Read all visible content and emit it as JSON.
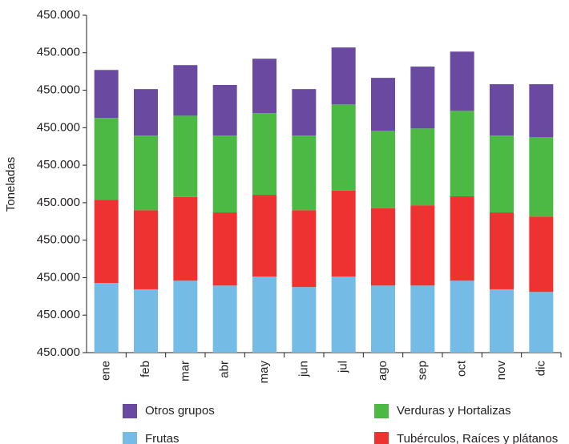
{
  "chart_data": {
    "type": "stacked_bar",
    "y_label": "Toneladas",
    "categories": [
      "ene",
      "feb",
      "mar",
      "abr",
      "may",
      "jun",
      "jul",
      "ago",
      "sep",
      "oct",
      "nov",
      "dic"
    ],
    "series": [
      {
        "name": "Frutas",
        "color": "#74bbe6",
        "values": [
          1.86,
          1.69,
          1.92,
          1.79,
          2.03,
          1.75,
          2.03,
          1.79,
          1.79,
          1.92,
          1.69,
          1.62
        ]
      },
      {
        "name": "Tubérculos, Raíces y plátanos",
        "color": "#ee3131",
        "values": [
          2.22,
          2.11,
          2.23,
          1.95,
          2.18,
          2.05,
          2.29,
          2.06,
          2.14,
          2.25,
          2.05,
          2.01
        ]
      },
      {
        "name": "Verduras y Hortalizas",
        "color": "#4cb944",
        "values": [
          2.18,
          1.99,
          2.17,
          2.05,
          2.18,
          1.99,
          2.3,
          2.07,
          2.05,
          2.28,
          2.05,
          2.12
        ]
      },
      {
        "name": "Otros grupos",
        "color": "#6a4aa0",
        "values": [
          1.28,
          1.24,
          1.35,
          1.35,
          1.45,
          1.24,
          1.52,
          1.41,
          1.65,
          1.58,
          1.37,
          1.41
        ]
      }
    ],
    "ylim": [
      0,
      9
    ],
    "yticks": [
      {
        "value": 0,
        "label": "450.000"
      },
      {
        "value": 1,
        "label": "450.000"
      },
      {
        "value": 2,
        "label": "450.000"
      },
      {
        "value": 3,
        "label": "450.000"
      },
      {
        "value": 4,
        "label": "450.000"
      },
      {
        "value": 5,
        "label": "450.000"
      },
      {
        "value": 6,
        "label": "450.000"
      },
      {
        "value": 7,
        "label": "450.000"
      },
      {
        "value": 8,
        "label": "450.000"
      },
      {
        "value": 9,
        "label": "450.000"
      }
    ],
    "grid": false
  }
}
